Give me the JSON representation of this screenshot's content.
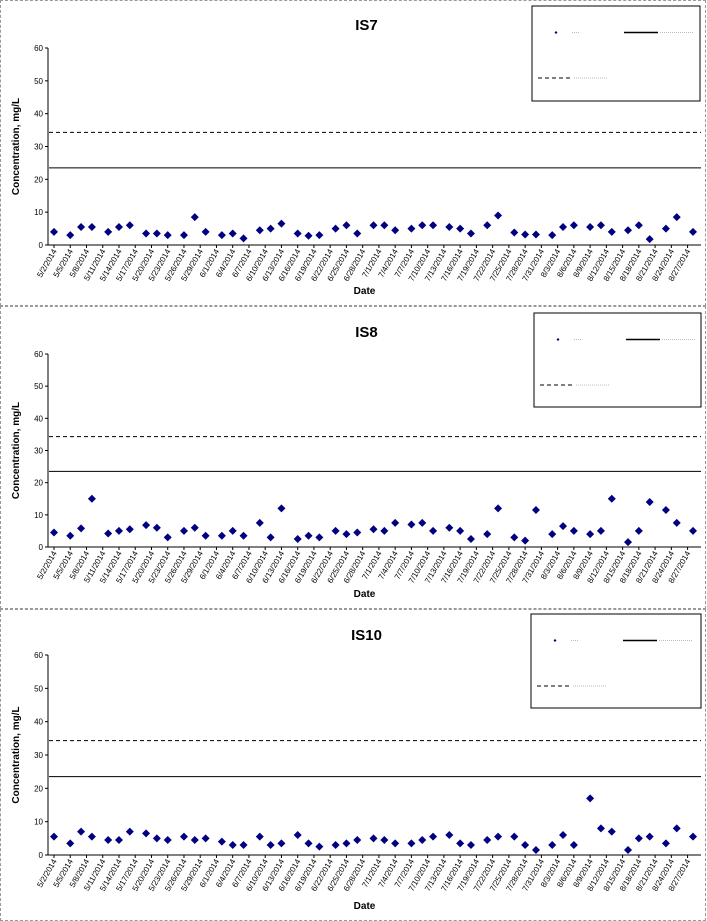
{
  "chart_data": [
    {
      "type": "scatter",
      "title": "IS7",
      "xlabel": "Date",
      "ylabel": "Concentration, mg/L",
      "ylim": [
        0,
        60
      ],
      "yticks": [
        0,
        10,
        20,
        30,
        40,
        50,
        60
      ],
      "grid": false,
      "legend_position": "top-right",
      "categories": [
        "5/2/2014",
        "5/5/2014",
        "5/8/2014",
        "5/11/2014",
        "5/14/2014",
        "5/17/2014",
        "5/20/2014",
        "5/23/2014",
        "5/26/2014",
        "5/29/2014",
        "6/1/2014",
        "6/4/2014",
        "6/7/2014",
        "6/10/2014",
        "6/13/2014",
        "6/16/2014",
        "6/19/2014",
        "6/22/2014",
        "6/25/2014",
        "6/28/2014",
        "7/1/2014",
        "7/4/2014",
        "7/7/2014",
        "7/10/2014",
        "7/13/2014",
        "7/16/2014",
        "7/19/2014",
        "7/22/2014",
        "7/25/2014",
        "7/28/2014",
        "7/31/2014",
        "8/3/2014",
        "8/6/2014",
        "8/9/2014",
        "8/12/2014",
        "8/15/2014",
        "8/18/2014",
        "8/21/2014",
        "8/24/2014",
        "8/27/2014"
      ],
      "x_range": [
        0,
        118
      ],
      "series": [
        {
          "color": "#000080",
          "marker": "diamond",
          "x": [
            0,
            3,
            5,
            7,
            10,
            12,
            14,
            17,
            19,
            21,
            24,
            26,
            28,
            31,
            33,
            35,
            38,
            40,
            42,
            45,
            47,
            49,
            52,
            54,
            56,
            59,
            61,
            63,
            66,
            68,
            70,
            73,
            75,
            77,
            80,
            82,
            85,
            87,
            89,
            92,
            94,
            96,
            99,
            101,
            103,
            106,
            108,
            110,
            113,
            115,
            118
          ],
          "y": [
            4,
            3,
            5.5,
            5.5,
            4,
            5.5,
            6,
            3.5,
            3.5,
            3,
            3,
            8.5,
            4,
            3,
            3.5,
            2,
            4.5,
            5,
            6.5,
            3.5,
            2.8,
            3,
            5,
            6,
            3.5,
            6,
            6,
            4.5,
            5,
            6,
            6,
            5.5,
            5,
            3.5,
            6,
            9,
            3.8,
            3.2,
            3.2,
            3,
            5.5,
            6,
            5.5,
            6,
            4,
            4.5,
            6,
            1.8,
            5,
            8.5,
            4
          ]
        },
        {
          "style": "solid",
          "values": [
            23.5
          ]
        },
        {
          "style": "dashed",
          "values": [
            34.3
          ]
        }
      ]
    },
    {
      "type": "scatter",
      "title": "IS8",
      "xlabel": "Date",
      "ylabel": "Concentration, mg/L",
      "ylim": [
        0,
        60
      ],
      "yticks": [
        0,
        10,
        20,
        30,
        40,
        50,
        60
      ],
      "grid": false,
      "legend_position": "top-right",
      "categories": [
        "5/2/2014",
        "5/5/2014",
        "5/8/2014",
        "5/11/2014",
        "5/14/2014",
        "5/17/2014",
        "5/20/2014",
        "5/23/2014",
        "5/26/2014",
        "5/29/2014",
        "6/1/2014",
        "6/4/2014",
        "6/7/2014",
        "6/10/2014",
        "6/13/2014",
        "6/16/2014",
        "6/19/2014",
        "6/22/2014",
        "6/25/2014",
        "6/28/2014",
        "7/1/2014",
        "7/4/2014",
        "7/7/2014",
        "7/10/2014",
        "7/13/2014",
        "7/16/2014",
        "7/19/2014",
        "7/22/2014",
        "7/25/2014",
        "7/28/2014",
        "7/31/2014",
        "8/3/2014",
        "8/6/2014",
        "8/9/2014",
        "8/12/2014",
        "8/15/2014",
        "8/18/2014",
        "8/21/2014",
        "8/24/2014",
        "8/27/2014"
      ],
      "x_range": [
        0,
        118
      ],
      "series": [
        {
          "color": "#000080",
          "marker": "diamond",
          "x": [
            0,
            3,
            5,
            7,
            10,
            12,
            14,
            17,
            19,
            21,
            24,
            26,
            28,
            31,
            33,
            35,
            38,
            40,
            42,
            45,
            47,
            49,
            52,
            54,
            56,
            59,
            61,
            63,
            66,
            68,
            70,
            73,
            75,
            77,
            80,
            82,
            85,
            87,
            89,
            92,
            94,
            96,
            99,
            101,
            103,
            106,
            108,
            110,
            113,
            115,
            118
          ],
          "y": [
            4.5,
            3.5,
            5.8,
            15,
            4.2,
            5,
            5.5,
            6.8,
            6,
            3,
            5,
            6,
            3.5,
            3.5,
            5,
            3.5,
            7.5,
            3,
            12,
            2.5,
            3.5,
            3,
            5,
            4,
            4.5,
            5.5,
            5,
            7.5,
            7,
            7.5,
            5,
            6,
            5,
            2.5,
            4,
            12,
            3,
            2,
            11.5,
            4,
            6.5,
            5,
            4,
            5,
            15,
            1.5,
            5,
            14,
            11.5,
            7.5,
            5
          ]
        },
        {
          "style": "solid",
          "values": [
            23.5
          ]
        },
        {
          "style": "dashed",
          "values": [
            34.3
          ]
        }
      ]
    },
    {
      "type": "scatter",
      "title": "IS10",
      "xlabel": "Date",
      "ylabel": "Concentration, mg/L",
      "ylim": [
        0,
        60
      ],
      "yticks": [
        0,
        10,
        20,
        30,
        40,
        50,
        60
      ],
      "grid": false,
      "legend_position": "top-right",
      "categories": [
        "5/2/2014",
        "5/5/2014",
        "5/8/2014",
        "5/11/2014",
        "5/14/2014",
        "5/17/2014",
        "5/20/2014",
        "5/23/2014",
        "5/26/2014",
        "5/29/2014",
        "6/1/2014",
        "6/4/2014",
        "6/7/2014",
        "6/10/2014",
        "6/13/2014",
        "6/16/2014",
        "6/19/2014",
        "6/22/2014",
        "6/25/2014",
        "6/28/2014",
        "7/1/2014",
        "7/4/2014",
        "7/7/2014",
        "7/10/2014",
        "7/13/2014",
        "7/16/2014",
        "7/19/2014",
        "7/22/2014",
        "7/25/2014",
        "7/28/2014",
        "7/31/2014",
        "8/3/2014",
        "8/6/2014",
        "8/9/2014",
        "8/12/2014",
        "8/15/2014",
        "8/18/2014",
        "8/21/2014",
        "8/24/2014",
        "8/27/2014"
      ],
      "x_range": [
        0,
        118
      ],
      "series": [
        {
          "color": "#000080",
          "marker": "diamond",
          "x": [
            0,
            3,
            5,
            7,
            10,
            12,
            14,
            17,
            19,
            21,
            24,
            26,
            28,
            31,
            33,
            35,
            38,
            40,
            42,
            45,
            47,
            49,
            52,
            54,
            56,
            59,
            61,
            63,
            66,
            68,
            70,
            73,
            75,
            77,
            80,
            82,
            85,
            87,
            89,
            92,
            94,
            96,
            99,
            101,
            103,
            106,
            108,
            110,
            113,
            115,
            118
          ],
          "y": [
            5.5,
            3.5,
            7,
            5.5,
            4.5,
            4.5,
            7,
            6.5,
            5,
            4.5,
            5.5,
            4.5,
            5,
            4,
            3,
            3,
            5.5,
            3,
            3.5,
            6,
            3.5,
            2.5,
            3,
            3.5,
            4.5,
            5,
            4.5,
            3.5,
            3.5,
            4.5,
            5.5,
            6,
            3.5,
            3,
            4.5,
            5.5,
            5.5,
            3,
            1.5,
            3,
            6,
            3,
            17,
            8,
            7,
            1.5,
            5,
            5.5,
            3.5,
            8,
            5.5
          ]
        },
        {
          "style": "solid",
          "values": [
            23.5
          ]
        },
        {
          "style": "dashed",
          "values": [
            34.3
          ]
        }
      ]
    }
  ]
}
